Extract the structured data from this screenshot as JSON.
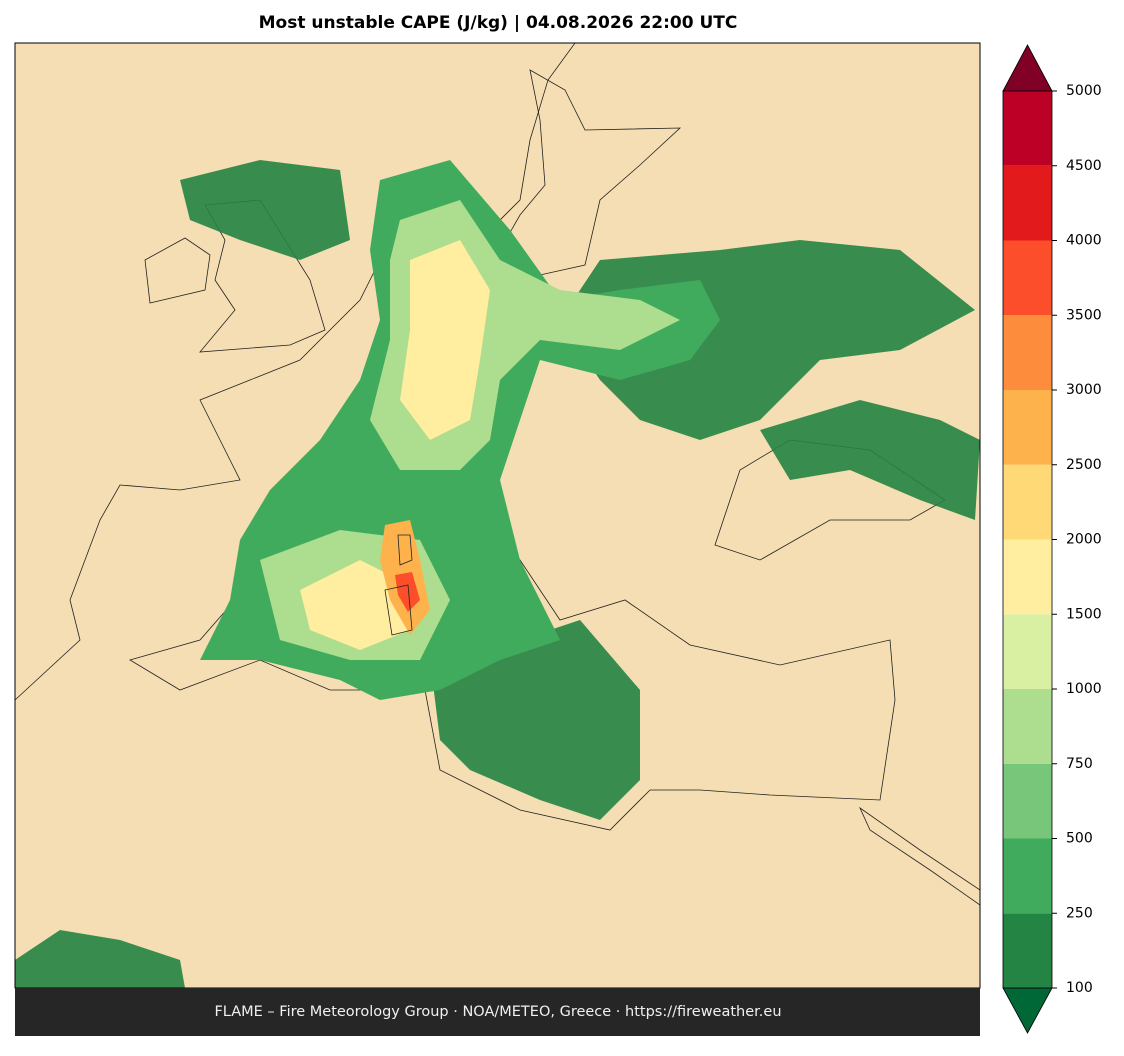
{
  "title": "Most unstable CAPE (J/kg)  |  04.08.2026 22:00 UTC",
  "footer": "FLAME – Fire Meteorology Group · NOA/METEO, Greece · https://fireweather.eu",
  "colorbar": {
    "levels": [
      100,
      250,
      500,
      750,
      1000,
      1500,
      2000,
      2500,
      3000,
      3500,
      4000,
      4500,
      5000
    ],
    "colors": [
      "#238443",
      "#41ab5d",
      "#78c679",
      "#addd8e",
      "#d9f0a3",
      "#ffeda0",
      "#fed976",
      "#feb24c",
      "#fd8d3c",
      "#fc4e2a",
      "#e31a1c",
      "#bd0026"
    ],
    "under_color": "#006837",
    "over_color": "#800026"
  }
}
